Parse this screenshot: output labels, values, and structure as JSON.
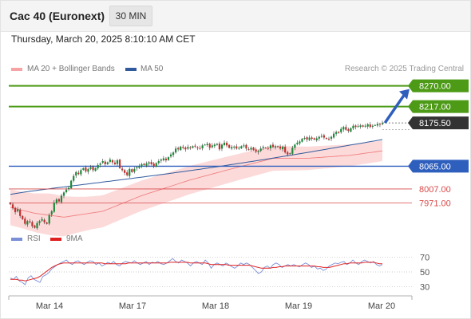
{
  "header": {
    "instrument": "Cac 40 (Euronext)",
    "timeframe": "30 MIN",
    "timestamp": "Thursday, March 20, 2025 8:10:10 AM CET"
  },
  "legend": {
    "bollinger": "MA 20 + Bollinger Bands",
    "ma50": "MA 50",
    "credit": "Research © 2025 Trading Central"
  },
  "rsi_legend": {
    "rsi": "RSI",
    "ma": "9MA"
  },
  "colors": {
    "resistance": "#4c9a16",
    "pivot": "#2f5fbd",
    "support": "#d94a4a",
    "last_price": "#333333",
    "bollinger_fill": "#fbd3d3",
    "ma20": "#f08080",
    "ma50": "#305a9c",
    "candle_up": "#1c8a3a",
    "candle_down": "#c0312f",
    "arrow": "#2f5fbd",
    "rsi_line": "#7b8fd6",
    "rsi_ma": "#e02020"
  },
  "chart_data": [
    {
      "type": "candlestick",
      "title": "",
      "x_tick_labels": [
        "Mar 14",
        "Mar 17",
        "Mar 18",
        "Mar 19",
        "Mar 20"
      ],
      "ylim": [
        7897,
        8314
      ],
      "grid": false,
      "legend_position": "top-left",
      "levels": [
        {
          "label": "8270.00",
          "value": 8270.0,
          "kind": "resistance"
        },
        {
          "label": "8217.00",
          "value": 8217.0,
          "kind": "resistance"
        },
        {
          "label": "8175.50",
          "value": 8175.5,
          "kind": "last_price"
        },
        {
          "label": "8065.00",
          "value": 8065.0,
          "kind": "pivot"
        },
        {
          "label": "8007.00",
          "value": 8007.0,
          "kind": "support"
        },
        {
          "label": "7971.00",
          "value": 7971.0,
          "kind": "support"
        }
      ],
      "projection": {
        "from": 8178,
        "to": 8262
      },
      "ma20_close_trend": [
        [
          0,
          7960
        ],
        [
          10,
          7945
        ],
        [
          22,
          7935
        ],
        [
          38,
          7950
        ],
        [
          54,
          7990
        ],
        [
          74,
          8030
        ],
        [
          92,
          8060
        ],
        [
          108,
          8085
        ],
        [
          122,
          8085
        ],
        [
          140,
          8093
        ],
        [
          160,
          8110
        ],
        [
          176,
          8115
        ],
        [
          192,
          8118
        ],
        [
          208,
          8124
        ],
        [
          220,
          8132
        ],
        [
          234,
          8150
        ],
        [
          248,
          8165
        ]
      ],
      "close": [
        7968,
        7958,
        7948,
        7955,
        7938,
        7930,
        7918,
        7925,
        7922,
        7912,
        7908,
        7920,
        7925,
        7930,
        7922,
        7918,
        7940,
        7950,
        7972,
        7980,
        7975,
        7990,
        7998,
        8005,
        8010,
        8028,
        8040,
        8050,
        8045,
        8055,
        8060,
        8052,
        8058,
        8062,
        8055,
        8060,
        8068,
        8072,
        8078,
        8070,
        8075,
        8082,
        8075,
        8070,
        8080,
        8060,
        8055,
        8048,
        8042,
        8058,
        8050,
        8058,
        8062,
        8065,
        8070,
        8068,
        8072,
        8075,
        8070,
        8065,
        8073,
        8078,
        8082,
        8085,
        8080,
        8088,
        8095,
        8100,
        8110,
        8108,
        8115,
        8112,
        8108,
        8114,
        8112,
        8116,
        8115,
        8112,
        8110,
        8118,
        8120,
        8122,
        8112,
        8118,
        8120,
        8122,
        8108,
        8120,
        8125,
        8118,
        8112,
        8114,
        8115,
        8110,
        8112,
        8116,
        8118,
        8110,
        8108,
        8112,
        8106,
        8102,
        8104,
        8110,
        8114,
        8112,
        8110,
        8118,
        8114,
        8116,
        8114,
        8110,
        8115,
        8100,
        8095,
        8098,
        8112,
        8120,
        8125,
        8128,
        8135,
        8137,
        8133,
        8138,
        8135,
        8133,
        8136,
        8140,
        8142,
        8138,
        8135,
        8134,
        8140,
        8148,
        8152,
        8150,
        8160,
        8165,
        8158,
        8155,
        8162,
        8168,
        8165,
        8167,
        8169,
        8166,
        8168,
        8172,
        8165,
        8168,
        8170,
        8173,
        8171,
        8175
      ],
      "bands": {
        "upper_start": 7998,
        "lower_start": 7907,
        "upper_end": 8180,
        "lower_end": 8128
      },
      "ma50_start": 7993,
      "ma50_end": 8133
    },
    {
      "type": "line",
      "title": "RSI",
      "ylim": [
        20,
        80
      ],
      "y_ticks": [
        70,
        50,
        30
      ],
      "series": [
        {
          "name": "RSI",
          "values": [
            42,
            40,
            44,
            38,
            36,
            33,
            42,
            45,
            40,
            38,
            36,
            44,
            46,
            49,
            54,
            57,
            60,
            62,
            64,
            66,
            62,
            60,
            64,
            65,
            62,
            60,
            63,
            65,
            64,
            60,
            62,
            58,
            60,
            63,
            61,
            64,
            60,
            58,
            62,
            64,
            63,
            62,
            65,
            62,
            60,
            62,
            64,
            60,
            63,
            62,
            64,
            61,
            60,
            62,
            65,
            68,
            64,
            62,
            66,
            64,
            62,
            58,
            62,
            64,
            62,
            60,
            66,
            62,
            55,
            60,
            62,
            60,
            58,
            62,
            60,
            57,
            55,
            58,
            62,
            60,
            62,
            60,
            56,
            52,
            48,
            50,
            56,
            58,
            55,
            60,
            62,
            60,
            56,
            58,
            60,
            58,
            60,
            58,
            57,
            60,
            62,
            60,
            56,
            58,
            54,
            55,
            52,
            54,
            58,
            60,
            62,
            61,
            63,
            64,
            60,
            62,
            66,
            62,
            60,
            64,
            66,
            64,
            62,
            64,
            60,
            58,
            60
          ]
        },
        {
          "name": "9MA",
          "values": [
            40,
            40,
            40,
            39,
            39,
            38,
            39,
            40,
            41,
            42,
            44,
            47,
            50,
            53,
            56,
            58,
            60,
            61,
            62,
            62,
            62,
            62,
            62,
            62,
            62,
            62,
            62,
            62,
            62,
            62,
            62,
            62,
            61,
            61,
            61,
            61,
            61,
            61,
            61,
            61,
            62,
            62,
            62,
            62,
            62,
            62,
            62,
            62,
            62,
            62,
            62,
            62,
            62,
            62,
            63,
            63,
            63,
            63,
            63,
            63,
            63,
            62,
            62,
            62,
            62,
            62,
            62,
            61,
            60,
            60,
            60,
            60,
            60,
            60,
            59,
            59,
            59,
            59,
            59,
            59,
            59,
            59,
            58,
            57,
            56,
            55,
            55,
            55,
            55,
            56,
            56,
            57,
            57,
            58,
            58,
            58,
            58,
            58,
            58,
            58,
            58,
            58,
            58,
            58,
            57,
            57,
            56,
            56,
            56,
            57,
            58,
            59,
            60,
            61,
            61,
            62,
            62,
            62,
            62,
            62,
            63,
            63,
            63,
            63,
            62,
            61,
            61
          ]
        }
      ]
    }
  ]
}
